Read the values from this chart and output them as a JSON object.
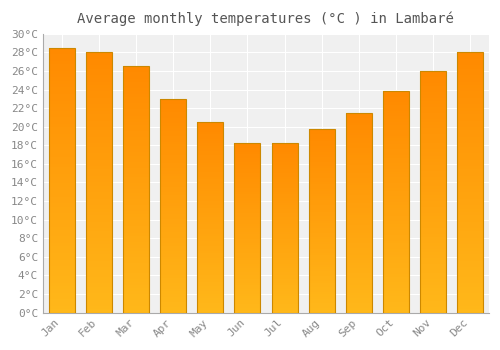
{
  "title": "Average monthly temperatures (°C ) in Lambaré",
  "months": [
    "Jan",
    "Feb",
    "Mar",
    "Apr",
    "May",
    "Jun",
    "Jul",
    "Aug",
    "Sep",
    "Oct",
    "Nov",
    "Dec"
  ],
  "values": [
    28.5,
    28.0,
    26.5,
    23.0,
    20.5,
    18.2,
    18.2,
    19.7,
    21.5,
    23.8,
    26.0,
    28.0
  ],
  "ylim": [
    0,
    30
  ],
  "ytick_step": 2,
  "background_color": "#ffffff",
  "plot_bg_color": "#f0f0f0",
  "grid_color": "#ffffff",
  "tick_label_color": "#888888",
  "title_color": "#555555",
  "title_fontsize": 10,
  "tick_fontsize": 8,
  "bar_color_bottom": "#FFB800",
  "bar_color_top": "#FF9500",
  "bar_edge_color": "#CC8800",
  "bar_width": 0.7
}
